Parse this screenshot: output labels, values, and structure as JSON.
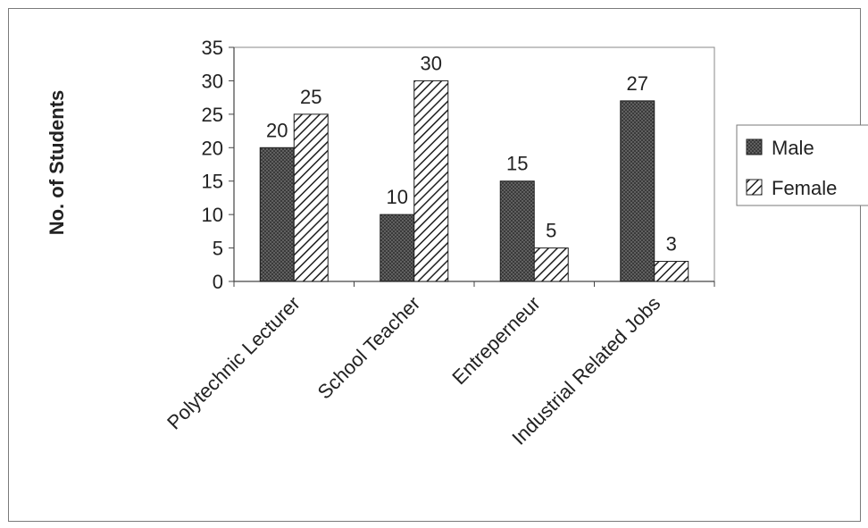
{
  "chart_data": {
    "type": "bar",
    "title": "",
    "xlabel": "",
    "ylabel": "No. of Students",
    "categories": [
      "Polytechnic Lecturer",
      "School Teacher",
      "Entreperneur",
      "Industrial Related Jobs"
    ],
    "series": [
      {
        "name": "Male",
        "values": [
          20,
          10,
          15,
          27
        ],
        "pattern": "dots",
        "color": "#2b2b2b"
      },
      {
        "name": "Female",
        "values": [
          25,
          30,
          5,
          3
        ],
        "pattern": "diagonal-hatch",
        "color": "#2b2b2b"
      }
    ],
    "ylim": [
      0,
      35
    ],
    "yticks": [
      0,
      5,
      10,
      15,
      20,
      25,
      30,
      35
    ],
    "grid": false,
    "legend_position": "right",
    "data_labels": true
  }
}
